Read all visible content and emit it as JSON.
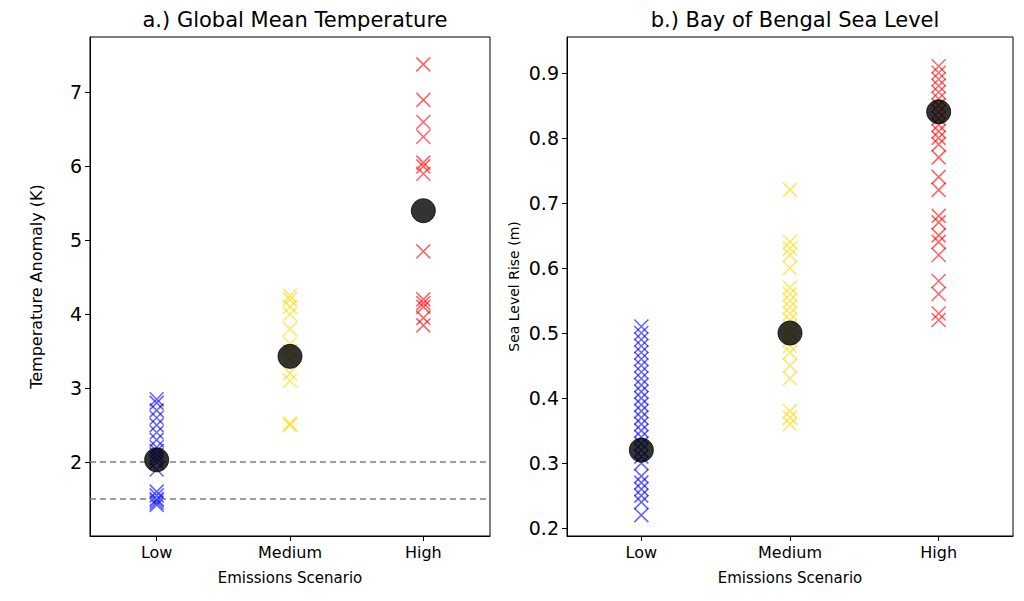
{
  "chart_data": [
    {
      "type": "scatter",
      "title": "a.) Global Mean Temperature",
      "x_label": "Emissions Scenario",
      "y_label": "Temperature Anomaly (K)",
      "categories": [
        "Low",
        "Medium",
        "High"
      ],
      "ylim": [
        1.0,
        7.75
      ],
      "yticks": [
        2,
        3,
        4,
        5,
        6,
        7
      ],
      "grid": false,
      "series": [
        {
          "marker": "x",
          "colors": [
            "#0000ff",
            "#ffd700",
            "#ff0000"
          ],
          "values": [
            [
              1.42,
              1.45,
              1.48,
              1.5,
              1.55,
              1.6,
              1.9,
              2.0,
              2.05,
              2.1,
              2.15,
              2.2,
              2.3,
              2.4,
              2.5,
              2.6,
              2.7,
              2.8,
              2.85
            ],
            [
              2.5,
              2.52,
              3.1,
              3.2,
              3.4,
              3.5,
              3.6,
              3.8,
              4.0,
              4.1,
              4.2,
              4.25
            ],
            [
              3.85,
              3.95,
              4.1,
              4.15,
              4.2,
              4.85,
              5.9,
              6.0,
              6.05,
              6.4,
              6.6,
              6.9,
              7.38
            ]
          ]
        },
        {
          "marker": "circle",
          "color": "#000000",
          "values": [
            2.03,
            3.43,
            5.4
          ]
        }
      ],
      "reference_lines": {
        "values": [
          2,
          1.5
        ],
        "color": "#808080",
        "line_style": "dashed"
      }
    },
    {
      "type": "scatter",
      "title": "b.) Bay of Bengal Sea Level",
      "x_label": "Emissions Scenario",
      "y_label": "Sea Level Rise (m)",
      "categories": [
        "Low",
        "Medium",
        "High"
      ],
      "ylim": [
        0.188,
        0.955
      ],
      "yticks": [
        0.2,
        0.3,
        0.4,
        0.5,
        0.6,
        0.7,
        0.8,
        0.9
      ],
      "grid": false,
      "series": [
        {
          "marker": "x",
          "colors": [
            "#0000ff",
            "#ffd700",
            "#ff0000"
          ],
          "values": [
            [
              0.22,
              0.24,
              0.25,
              0.26,
              0.27,
              0.28,
              0.3,
              0.31,
              0.32,
              0.33,
              0.34,
              0.35,
              0.36,
              0.37,
              0.38,
              0.39,
              0.4,
              0.41,
              0.42,
              0.43,
              0.44,
              0.45,
              0.46,
              0.47,
              0.48,
              0.49,
              0.5,
              0.51
            ],
            [
              0.36,
              0.37,
              0.38,
              0.43,
              0.45,
              0.47,
              0.48,
              0.49,
              0.5,
              0.51,
              0.52,
              0.53,
              0.54,
              0.55,
              0.56,
              0.57,
              0.6,
              0.62,
              0.63,
              0.64,
              0.72
            ],
            [
              0.52,
              0.53,
              0.56,
              0.58,
              0.62,
              0.64,
              0.65,
              0.67,
              0.68,
              0.72,
              0.74,
              0.77,
              0.79,
              0.8,
              0.81,
              0.82,
              0.83,
              0.84,
              0.85,
              0.86,
              0.87,
              0.88,
              0.89,
              0.9,
              0.91
            ]
          ]
        },
        {
          "marker": "circle",
          "color": "#000000",
          "values": [
            0.32,
            0.5,
            0.84
          ]
        }
      ]
    }
  ]
}
